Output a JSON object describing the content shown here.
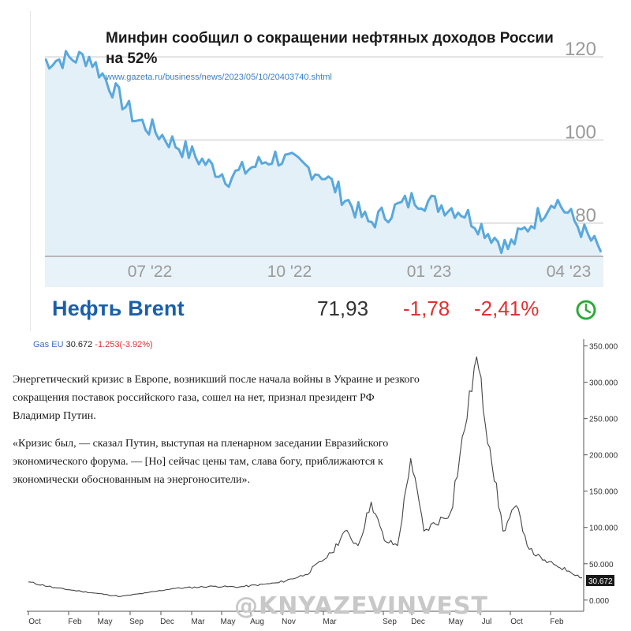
{
  "news": {
    "title": "Минфин сообщил о сокращении нефтяных доходов России на 52%",
    "link": "www.gazeta.ru/business/news/2023/05/10/20403740.shtml"
  },
  "brent": {
    "name": "Нефть Brent",
    "price": "71,93",
    "change": "-1,78",
    "change_pct": "-2,41%"
  },
  "gas": {
    "name": "Gas EU",
    "value": "30.672",
    "change": "-1.253(-3.92%)",
    "last_label": "30.672"
  },
  "article": {
    "p1": "Энергетический кризис в Европе, возникший после начала войны в Украине и резкого сокращения поставок российского газа, сошел на нет, признал президент РФ Владимир Путин.",
    "p2": "«Кризис был, — сказал Путин, выступая на пленарном заседании Евразийского экономического форума. — [Но] сейчас цены там, слава богу, приближаются к экономически обоснованным на энергоносители»."
  },
  "watermark": "@KNYAZEVINVEST",
  "colors": {
    "brent_line": "#5aa8dc",
    "brent_fill": "#e3f0f8",
    "accent_blue": "#1b5fa8",
    "negative": "#e03030",
    "clock": "#2eaa3a",
    "gas_line": "#444444"
  },
  "chart_data": [
    {
      "type": "area",
      "series_name": "Нефть Brent",
      "x_ticks": [
        "07 '22",
        "10 '22",
        "01 '23",
        "04 '23"
      ],
      "y_ticks": [
        "120",
        "100",
        "80"
      ],
      "ylim": [
        72,
        128
      ],
      "grid": true,
      "x": [
        "2022-05",
        "2022-06",
        "2022-07",
        "2022-08",
        "2022-09",
        "2022-10",
        "2022-11",
        "2022-12",
        "2023-01",
        "2023-02",
        "2023-03",
        "2023-04",
        "2023-05"
      ],
      "values": [
        119,
        120,
        105,
        98,
        91,
        96,
        92,
        80,
        86,
        83,
        74,
        86,
        73
      ]
    },
    {
      "type": "line",
      "series_name": "Gas EU",
      "x_ticks": [
        "Oct",
        "Feb",
        "May",
        "Sep",
        "Dec",
        "Mar",
        "May",
        "Aug",
        "Nov",
        "Mar",
        "Sep",
        "Dec",
        "May",
        "Jul",
        "Oct",
        "Feb"
      ],
      "y_ticks": [
        "350.000",
        "300.000",
        "250.000",
        "200.000",
        "150.000",
        "100.000",
        "50.000",
        "0.000"
      ],
      "ylim": [
        -10,
        355
      ],
      "grid": false,
      "x": [
        "2019-10",
        "2019-12",
        "2020-02",
        "2020-05",
        "2020-07",
        "2020-09",
        "2020-12",
        "2021-02",
        "2021-05",
        "2021-07",
        "2021-09",
        "2021-10",
        "2021-11",
        "2021-12",
        "2022-01",
        "2022-02",
        "2022-03",
        "2022-04",
        "2022-06",
        "2022-08",
        "2022-09",
        "2022-10",
        "2022-11",
        "2022-12",
        "2023-01",
        "2023-02",
        "2023-03",
        "2023-04"
      ],
      "values": [
        25,
        17,
        12,
        5,
        10,
        16,
        19,
        18,
        24,
        35,
        65,
        95,
        75,
        135,
        82,
        75,
        195,
        95,
        120,
        335,
        210,
        95,
        130,
        70,
        55,
        48,
        40,
        30.672
      ]
    }
  ]
}
